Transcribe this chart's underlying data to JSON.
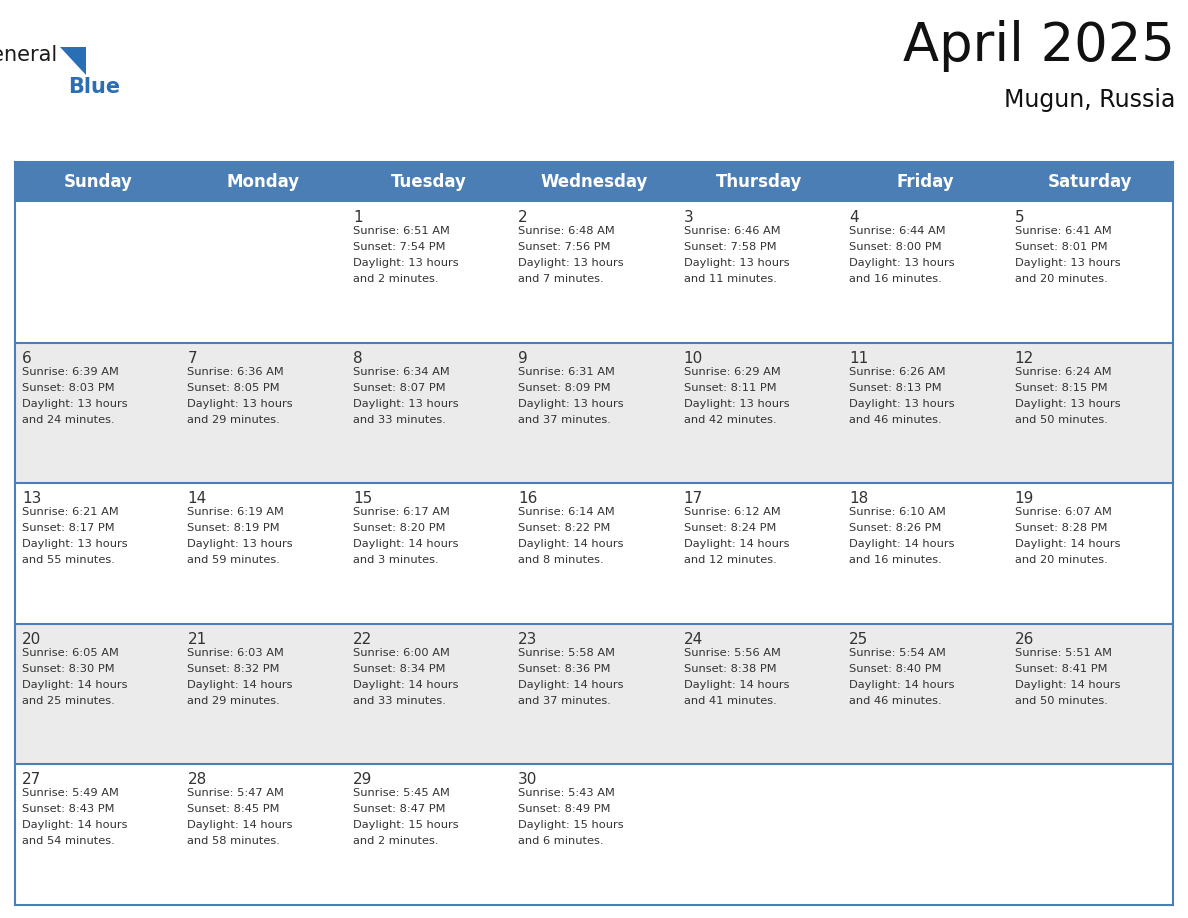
{
  "title": "April 2025",
  "subtitle": "Mugun, Russia",
  "header_color": "#4a7eb5",
  "header_text_color": "#ffffff",
  "day_names": [
    "Sunday",
    "Monday",
    "Tuesday",
    "Wednesday",
    "Thursday",
    "Friday",
    "Saturday"
  ],
  "title_fontsize": 38,
  "subtitle_fontsize": 17,
  "header_fontsize": 12,
  "cell_number_fontsize": 11,
  "cell_text_fontsize": 8.2,
  "background_color": "#ffffff",
  "row_colors": [
    "#ffffff",
    "#ebebeb"
  ],
  "cell_border_color": "#4a7eb5",
  "logo_general_color": "#1a1a1a",
  "logo_blue_color": "#2a6fb5",
  "logo_triangle_color": "#2a6fb5",
  "days": [
    {
      "date": 1,
      "col": 2,
      "row": 0,
      "sunrise": "6:51 AM",
      "sunset": "7:54 PM",
      "daylight_h": "13 hours",
      "daylight_m": "and 2 minutes."
    },
    {
      "date": 2,
      "col": 3,
      "row": 0,
      "sunrise": "6:48 AM",
      "sunset": "7:56 PM",
      "daylight_h": "13 hours",
      "daylight_m": "and 7 minutes."
    },
    {
      "date": 3,
      "col": 4,
      "row": 0,
      "sunrise": "6:46 AM",
      "sunset": "7:58 PM",
      "daylight_h": "13 hours",
      "daylight_m": "and 11 minutes."
    },
    {
      "date": 4,
      "col": 5,
      "row": 0,
      "sunrise": "6:44 AM",
      "sunset": "8:00 PM",
      "daylight_h": "13 hours",
      "daylight_m": "and 16 minutes."
    },
    {
      "date": 5,
      "col": 6,
      "row": 0,
      "sunrise": "6:41 AM",
      "sunset": "8:01 PM",
      "daylight_h": "13 hours",
      "daylight_m": "and 20 minutes."
    },
    {
      "date": 6,
      "col": 0,
      "row": 1,
      "sunrise": "6:39 AM",
      "sunset": "8:03 PM",
      "daylight_h": "13 hours",
      "daylight_m": "and 24 minutes."
    },
    {
      "date": 7,
      "col": 1,
      "row": 1,
      "sunrise": "6:36 AM",
      "sunset": "8:05 PM",
      "daylight_h": "13 hours",
      "daylight_m": "and 29 minutes."
    },
    {
      "date": 8,
      "col": 2,
      "row": 1,
      "sunrise": "6:34 AM",
      "sunset": "8:07 PM",
      "daylight_h": "13 hours",
      "daylight_m": "and 33 minutes."
    },
    {
      "date": 9,
      "col": 3,
      "row": 1,
      "sunrise": "6:31 AM",
      "sunset": "8:09 PM",
      "daylight_h": "13 hours",
      "daylight_m": "and 37 minutes."
    },
    {
      "date": 10,
      "col": 4,
      "row": 1,
      "sunrise": "6:29 AM",
      "sunset": "8:11 PM",
      "daylight_h": "13 hours",
      "daylight_m": "and 42 minutes."
    },
    {
      "date": 11,
      "col": 5,
      "row": 1,
      "sunrise": "6:26 AM",
      "sunset": "8:13 PM",
      "daylight_h": "13 hours",
      "daylight_m": "and 46 minutes."
    },
    {
      "date": 12,
      "col": 6,
      "row": 1,
      "sunrise": "6:24 AM",
      "sunset": "8:15 PM",
      "daylight_h": "13 hours",
      "daylight_m": "and 50 minutes."
    },
    {
      "date": 13,
      "col": 0,
      "row": 2,
      "sunrise": "6:21 AM",
      "sunset": "8:17 PM",
      "daylight_h": "13 hours",
      "daylight_m": "and 55 minutes."
    },
    {
      "date": 14,
      "col": 1,
      "row": 2,
      "sunrise": "6:19 AM",
      "sunset": "8:19 PM",
      "daylight_h": "13 hours",
      "daylight_m": "and 59 minutes."
    },
    {
      "date": 15,
      "col": 2,
      "row": 2,
      "sunrise": "6:17 AM",
      "sunset": "8:20 PM",
      "daylight_h": "14 hours",
      "daylight_m": "and 3 minutes."
    },
    {
      "date": 16,
      "col": 3,
      "row": 2,
      "sunrise": "6:14 AM",
      "sunset": "8:22 PM",
      "daylight_h": "14 hours",
      "daylight_m": "and 8 minutes."
    },
    {
      "date": 17,
      "col": 4,
      "row": 2,
      "sunrise": "6:12 AM",
      "sunset": "8:24 PM",
      "daylight_h": "14 hours",
      "daylight_m": "and 12 minutes."
    },
    {
      "date": 18,
      "col": 5,
      "row": 2,
      "sunrise": "6:10 AM",
      "sunset": "8:26 PM",
      "daylight_h": "14 hours",
      "daylight_m": "and 16 minutes."
    },
    {
      "date": 19,
      "col": 6,
      "row": 2,
      "sunrise": "6:07 AM",
      "sunset": "8:28 PM",
      "daylight_h": "14 hours",
      "daylight_m": "and 20 minutes."
    },
    {
      "date": 20,
      "col": 0,
      "row": 3,
      "sunrise": "6:05 AM",
      "sunset": "8:30 PM",
      "daylight_h": "14 hours",
      "daylight_m": "and 25 minutes."
    },
    {
      "date": 21,
      "col": 1,
      "row": 3,
      "sunrise": "6:03 AM",
      "sunset": "8:32 PM",
      "daylight_h": "14 hours",
      "daylight_m": "and 29 minutes."
    },
    {
      "date": 22,
      "col": 2,
      "row": 3,
      "sunrise": "6:00 AM",
      "sunset": "8:34 PM",
      "daylight_h": "14 hours",
      "daylight_m": "and 33 minutes."
    },
    {
      "date": 23,
      "col": 3,
      "row": 3,
      "sunrise": "5:58 AM",
      "sunset": "8:36 PM",
      "daylight_h": "14 hours",
      "daylight_m": "and 37 minutes."
    },
    {
      "date": 24,
      "col": 4,
      "row": 3,
      "sunrise": "5:56 AM",
      "sunset": "8:38 PM",
      "daylight_h": "14 hours",
      "daylight_m": "and 41 minutes."
    },
    {
      "date": 25,
      "col": 5,
      "row": 3,
      "sunrise": "5:54 AM",
      "sunset": "8:40 PM",
      "daylight_h": "14 hours",
      "daylight_m": "and 46 minutes."
    },
    {
      "date": 26,
      "col": 6,
      "row": 3,
      "sunrise": "5:51 AM",
      "sunset": "8:41 PM",
      "daylight_h": "14 hours",
      "daylight_m": "and 50 minutes."
    },
    {
      "date": 27,
      "col": 0,
      "row": 4,
      "sunrise": "5:49 AM",
      "sunset": "8:43 PM",
      "daylight_h": "14 hours",
      "daylight_m": "and 54 minutes."
    },
    {
      "date": 28,
      "col": 1,
      "row": 4,
      "sunrise": "5:47 AM",
      "sunset": "8:45 PM",
      "daylight_h": "14 hours",
      "daylight_m": "and 58 minutes."
    },
    {
      "date": 29,
      "col": 2,
      "row": 4,
      "sunrise": "5:45 AM",
      "sunset": "8:47 PM",
      "daylight_h": "15 hours",
      "daylight_m": "and 2 minutes."
    },
    {
      "date": 30,
      "col": 3,
      "row": 4,
      "sunrise": "5:43 AM",
      "sunset": "8:49 PM",
      "daylight_h": "15 hours",
      "daylight_m": "and 6 minutes."
    }
  ]
}
